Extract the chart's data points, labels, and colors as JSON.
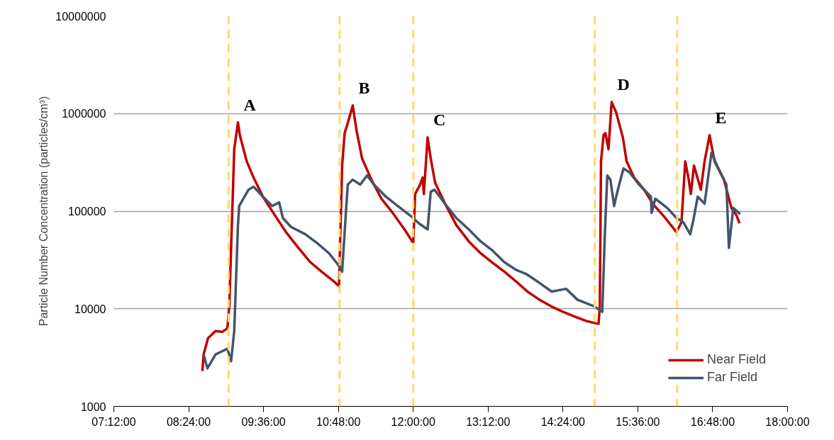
{
  "chart_data": {
    "type": "line",
    "ylabel": "Particle Number Concentration (particles/cm³)",
    "xlim": [
      7.2,
      18.0
    ],
    "xticks": [
      {
        "value": 7.2,
        "label": "07:12:00"
      },
      {
        "value": 8.4,
        "label": "08:24:00"
      },
      {
        "value": 9.6,
        "label": "09:36:00"
      },
      {
        "value": 10.8,
        "label": "10:48:00"
      },
      {
        "value": 12.0,
        "label": "12:00:00"
      },
      {
        "value": 13.2,
        "label": "13:12:00"
      },
      {
        "value": 14.4,
        "label": "14:24:00"
      },
      {
        "value": 15.6,
        "label": "15:36:00"
      },
      {
        "value": 16.8,
        "label": "16:48:00"
      },
      {
        "value": 18.0,
        "label": "18:00:00"
      }
    ],
    "ylim": [
      1000,
      10000000
    ],
    "yticks": [
      1000,
      10000,
      100000,
      1000000,
      10000000
    ],
    "log": "y",
    "grid": "y",
    "legend": "bottom right",
    "line_style": "solid",
    "series": [
      {
        "name": "Near Field",
        "color": "#c00000",
        "x": [
          8.62,
          8.64,
          8.71,
          8.83,
          8.94,
          9.02,
          9.05,
          9.11,
          9.13,
          9.19,
          9.22,
          9.33,
          9.44,
          9.59,
          9.78,
          9.96,
          10.16,
          10.35,
          10.53,
          10.73,
          10.81,
          10.83,
          10.86,
          10.9,
          10.95,
          11.03,
          11.09,
          11.18,
          11.33,
          11.49,
          11.67,
          11.86,
          12.0,
          12.03,
          12.11,
          12.15,
          12.17,
          12.23,
          12.28,
          12.35,
          12.51,
          12.69,
          12.89,
          13.08,
          13.26,
          13.46,
          13.65,
          13.83,
          14.02,
          14.22,
          14.4,
          14.59,
          14.77,
          14.97,
          14.99,
          15.01,
          15.05,
          15.08,
          15.13,
          15.18,
          15.25,
          15.36,
          15.42,
          15.54,
          15.7,
          15.84,
          16.04,
          16.22,
          16.3,
          16.36,
          16.41,
          16.45,
          16.5,
          16.61,
          16.67,
          16.75,
          16.83,
          16.98,
          17.1,
          17.18,
          17.23
        ],
        "values": [
          2300,
          3400,
          5000,
          5900,
          5800,
          6300,
          10500,
          166000,
          430000,
          810000,
          600000,
          324000,
          221000,
          141000,
          91000,
          61000,
          42000,
          30000,
          24000,
          19000,
          17000,
          55000,
          293000,
          631000,
          796000,
          1210000,
          675000,
          346000,
          210000,
          134000,
          96000,
          65000,
          47000,
          150000,
          187000,
          221000,
          150000,
          570000,
          346000,
          196000,
          119000,
          72000,
          49000,
          37000,
          30000,
          24000,
          19000,
          15000,
          12400,
          10500,
          9300,
          8300,
          7500,
          7000,
          10500,
          324000,
          600000,
          631000,
          430000,
          1310000,
          1040000,
          570000,
          324000,
          221000,
          166000,
          119000,
          85000,
          61000,
          77000,
          324000,
          221000,
          150000,
          293000,
          166000,
          324000,
          600000,
          324000,
          210000,
          108000,
          91000,
          75000
        ]
      },
      {
        "name": "Far Field",
        "color": "#44546a",
        "x": [
          8.64,
          8.7,
          8.83,
          9.02,
          9.08,
          9.13,
          9.19,
          9.21,
          9.36,
          9.44,
          9.59,
          9.74,
          9.85,
          9.91,
          10.04,
          10.27,
          10.46,
          10.65,
          10.82,
          10.86,
          10.92,
          10.95,
          11.03,
          11.15,
          11.26,
          11.37,
          11.56,
          11.75,
          12.0,
          12.09,
          12.23,
          12.28,
          12.34,
          12.51,
          12.69,
          12.89,
          13.08,
          13.26,
          13.46,
          13.65,
          13.82,
          13.94,
          14.22,
          14.45,
          14.63,
          14.9,
          15.03,
          15.07,
          15.11,
          15.16,
          15.22,
          15.28,
          15.37,
          15.47,
          15.62,
          15.81,
          15.82,
          15.88,
          16.07,
          16.22,
          16.33,
          16.44,
          16.49,
          16.56,
          16.67,
          16.78,
          16.87,
          17.02,
          17.06,
          17.13,
          17.24
        ],
        "values": [
          3400,
          2450,
          3400,
          3900,
          2900,
          5900,
          72000,
          113000,
          166000,
          178000,
          141000,
          113000,
          123000,
          85000,
          69000,
          58000,
          47000,
          37000,
          27000,
          24000,
          96000,
          187000,
          210000,
          187000,
          232000,
          187000,
          141000,
          113000,
          85000,
          75000,
          65000,
          158000,
          166000,
          119000,
          85000,
          65000,
          49000,
          40000,
          30000,
          25000,
          22500,
          20000,
          15000,
          16000,
          12400,
          10600,
          9300,
          55000,
          232000,
          210000,
          113000,
          166000,
          274000,
          248000,
          187000,
          141000,
          96000,
          134000,
          108000,
          85000,
          77000,
          58000,
          81000,
          141000,
          119000,
          395000,
          293000,
          187000,
          42000,
          108000,
          93000
        ]
      }
    ],
    "ref_lines": [
      {
        "axis": "x",
        "value": 9.04,
        "color": "#ffd966",
        "line_style": "dashed"
      },
      {
        "axis": "x",
        "value": 10.82,
        "color": "#ffd966",
        "line_style": "dashed"
      },
      {
        "axis": "x",
        "value": 12.0,
        "color": "#ffd966",
        "line_style": "dashed"
      },
      {
        "axis": "x",
        "value": 14.91,
        "color": "#ffd966",
        "line_style": "dashed"
      },
      {
        "axis": "x",
        "value": 16.23,
        "color": "#ffd966",
        "line_style": "dashed"
      }
    ],
    "annotations": [
      "A",
      "B",
      "C",
      "D",
      "E"
    ]
  }
}
